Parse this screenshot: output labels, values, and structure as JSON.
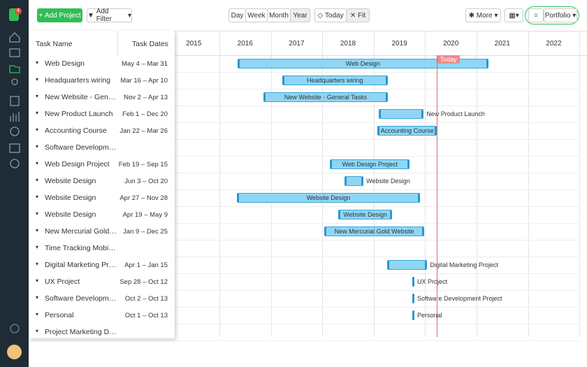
{
  "app": {
    "badge": "4"
  },
  "toolbar": {
    "add_project": "Add Project",
    "add_filter": "Add Filter",
    "views": [
      "Day",
      "Week",
      "Month",
      "Year"
    ],
    "today": "Today",
    "fit": "Fit",
    "more": "More",
    "portfolio": "Portfolio"
  },
  "gantt": {
    "columns": {
      "task_name": "Task Name",
      "task_dates": "Task Dates"
    },
    "years": [
      2015,
      2016,
      2017,
      2018,
      2019,
      2020,
      2021,
      2022
    ],
    "today_label": "Today",
    "today": 2020.22,
    "tasks": [
      {
        "name": "Web Design",
        "dates": "May 4 – Mar 31",
        "bar": {
          "start": 2016.35,
          "end": 2021.23
        }
      },
      {
        "name": "Headquarters wiring",
        "dates": "Mar 16 – Apr 10",
        "bar": {
          "start": 2017.22,
          "end": 2019.27
        }
      },
      {
        "name": "New Website - General Tasks",
        "dates": "Nov 2 – Apr 13",
        "bar": {
          "start": 2016.86,
          "end": 2019.27
        }
      },
      {
        "name": "New Product Launch",
        "dates": "Feb 1 – Dec 20",
        "bar": {
          "start": 2019.1,
          "end": 2019.97
        }
      },
      {
        "name": "Accounting Course",
        "dates": "Jan 22 – Mar 26",
        "bar": {
          "start": 2019.07,
          "end": 2020.23
        }
      },
      {
        "name": "Software Development Course"
      },
      {
        "name": "Web Design Project",
        "dates": "Feb 19 – Sep 15",
        "bar": {
          "start": 2018.15,
          "end": 2019.7
        }
      },
      {
        "name": "Website Design",
        "dates": "Jun 3 – Oct 20",
        "bar": {
          "start": 2018.43,
          "end": 2018.8
        }
      },
      {
        "name": "Website Design",
        "dates": "Apr 27 – Nov 28",
        "bar": {
          "start": 2016.34,
          "end": 2019.9
        }
      },
      {
        "name": "Website Design",
        "dates": "Apr 19 – May 9",
        "bar": {
          "start": 2018.31,
          "end": 2019.36
        }
      },
      {
        "name": "New Mercurial Gold Website",
        "dates": "Jan 9 – Dec 25",
        "bar": {
          "start": 2018.04,
          "end": 2019.98
        }
      },
      {
        "name": "Time Tracking Mobile App"
      },
      {
        "name": "Digital Marketing Project",
        "dates": "Apr 1 – Jan 15",
        "bar": {
          "start": 2019.26,
          "end": 2020.04
        }
      },
      {
        "name": "UX Project",
        "dates": "Sep 28 – Oct 12",
        "bar": {
          "start": 2019.75,
          "end": 2019.78
        }
      },
      {
        "name": "Software Development Project",
        "dates": "Oct 2 – Oct 13",
        "bar": {
          "start": 2019.75,
          "end": 2019.78
        }
      },
      {
        "name": "Personal",
        "dates": "Oct 1 – Oct 13",
        "bar": {
          "start": 2019.75,
          "end": 2019.78
        }
      },
      {
        "name": "Project Marketing Digital Campaign"
      }
    ]
  }
}
